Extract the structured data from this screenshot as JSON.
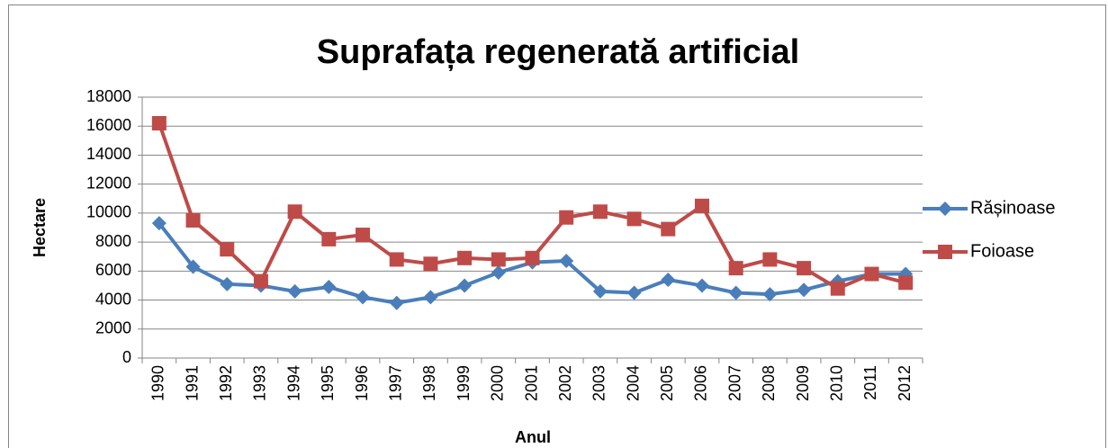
{
  "chart_data": {
    "type": "line",
    "title": "Suprafața regenerată artificial",
    "x_label": "Anul",
    "y_label": "Hectare",
    "categories": [
      "1990",
      "1991",
      "1992",
      "1993",
      "1994",
      "1995",
      "1996",
      "1997",
      "1998",
      "1999",
      "2000",
      "2001",
      "2002",
      "2003",
      "2004",
      "2005",
      "2006",
      "2007",
      "2008",
      "2009",
      "2010",
      "2011",
      "2012"
    ],
    "series": [
      {
        "name": "Rășinoase",
        "color": "#4a7ebb",
        "marker": "diamond",
        "values": [
          9300,
          6300,
          5100,
          5000,
          4600,
          4900,
          4200,
          3800,
          4200,
          5000,
          5900,
          6600,
          6700,
          4600,
          4500,
          5400,
          5000,
          4500,
          4400,
          4700,
          5300,
          5800,
          5800
        ]
      },
      {
        "name": "Foioase",
        "color": "#be4b48",
        "marker": "square",
        "values": [
          16200,
          9500,
          7500,
          5300,
          10100,
          8200,
          8500,
          6800,
          6500,
          6900,
          6800,
          6900,
          9700,
          10100,
          9600,
          8900,
          10500,
          6200,
          6800,
          6200,
          4800,
          5800,
          5200
        ]
      }
    ],
    "ylim": [
      0,
      18000
    ],
    "yticks": [
      0,
      2000,
      4000,
      6000,
      8000,
      10000,
      12000,
      14000,
      16000,
      18000
    ],
    "grid": true,
    "legend": "right"
  }
}
